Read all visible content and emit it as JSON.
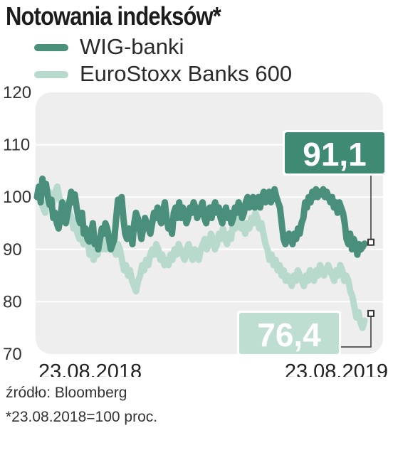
{
  "title": "Notowania indeksów*",
  "source": "źródło: Bloomberg",
  "footnote": "*23.08.2018=100 proc.",
  "colors": {
    "wig": "#4a8f7c",
    "euro": "#b8dacd",
    "wig_label_bg": "#3f8a73",
    "euro_label_bg": "#bfded2",
    "plot_bg": "#eeeeee",
    "grid": "#ffffff"
  },
  "chart_data": {
    "type": "line",
    "title": "Notowania indeksów*",
    "xlabel": "",
    "ylabel": "",
    "ylim": [
      70,
      120
    ],
    "yticks": [
      120,
      110,
      100,
      90,
      80,
      70
    ],
    "x_tick_labels": [
      "23.08.2018",
      "23.08.2019"
    ],
    "grid": true,
    "legend": "top-left",
    "series": [
      {
        "name": "WIG-banki",
        "color": "#4a8f7c",
        "end_label": "91,1",
        "values": [
          100,
          102,
          99,
          103.5,
          101,
          102.5,
          100,
          98.5,
          99.5,
          96,
          97,
          95,
          94,
          96,
          99,
          98,
          95,
          97,
          99,
          101,
          99,
          100.5,
          98,
          96,
          95,
          97,
          93,
          94,
          92,
          91.5,
          93,
          95,
          91,
          92,
          90,
          92,
          94,
          93,
          95,
          94,
          92,
          90,
          91,
          92,
          96,
          99.5,
          98,
          100,
          96,
          93,
          92,
          94,
          93,
          91,
          95,
          97,
          96,
          94,
          92,
          94,
          96,
          95,
          94,
          93,
          95,
          97,
          96,
          98,
          96,
          95,
          97,
          99,
          96,
          94,
          95,
          93,
          97,
          98,
          96,
          99,
          96,
          98,
          97,
          95,
          96,
          98,
          97,
          99,
          98,
          96,
          97,
          98,
          99,
          96,
          95,
          97,
          98,
          96,
          98,
          99,
          97,
          98,
          96,
          95,
          97,
          98,
          96,
          97,
          95,
          96,
          98,
          97,
          99,
          98,
          96,
          97,
          99,
          100,
          98,
          99,
          100,
          98,
          99,
          100,
          98,
          100,
          101,
          99,
          100,
          101,
          99,
          100,
          101.5,
          100,
          99,
          98,
          95,
          92,
          91,
          92,
          93,
          92,
          91,
          93,
          92,
          94,
          93,
          95,
          96,
          99,
          98,
          100,
          99,
          101,
          100,
          101.5,
          100,
          101,
          100.5,
          101.5,
          100,
          101,
          100,
          99,
          100,
          98,
          99,
          97,
          99,
          98,
          97,
          95,
          92,
          91,
          93,
          90,
          92,
          91,
          89,
          91,
          90,
          90.5,
          91.1
        ],
        "end_value": 91.1
      },
      {
        "name": "EuroStoxx Banks 600",
        "color": "#b8dacd",
        "end_label": "76,4",
        "values": [
          100,
          101,
          99,
          98,
          97,
          99,
          101,
          100,
          99,
          101,
          102,
          100,
          99,
          98,
          97,
          99,
          97,
          96,
          94,
          95,
          93,
          92,
          93,
          91,
          93,
          92,
          89,
          91,
          88,
          90,
          89,
          91,
          90,
          92,
          90,
          91,
          93,
          92,
          90,
          89,
          91,
          90,
          88,
          86,
          87,
          85,
          86,
          84,
          83,
          82,
          84,
          85,
          87,
          86,
          88,
          87,
          89,
          90,
          89,
          91,
          90,
          88,
          89,
          87,
          88,
          87,
          89,
          88,
          90,
          89,
          91,
          90,
          89,
          88,
          90,
          91,
          89,
          88,
          90,
          89,
          88,
          90,
          91,
          92,
          90,
          91,
          93,
          92,
          90,
          91,
          93,
          92,
          94,
          92,
          91,
          93,
          92,
          95,
          94,
          96,
          95,
          94,
          95,
          93,
          95,
          94,
          96,
          95,
          97,
          96,
          94,
          95,
          93,
          91,
          90,
          88,
          89,
          87,
          88,
          86,
          87,
          85,
          86,
          84,
          85,
          84,
          83,
          85,
          84,
          86,
          85,
          84,
          83,
          85,
          84,
          86,
          85,
          84,
          86,
          85,
          87,
          86,
          85,
          86,
          87,
          86,
          85,
          84,
          86,
          85,
          87,
          86,
          84,
          85,
          84,
          82,
          81,
          79,
          77,
          78,
          76,
          75,
          76.4
        ],
        "end_value": 76.4
      }
    ]
  }
}
